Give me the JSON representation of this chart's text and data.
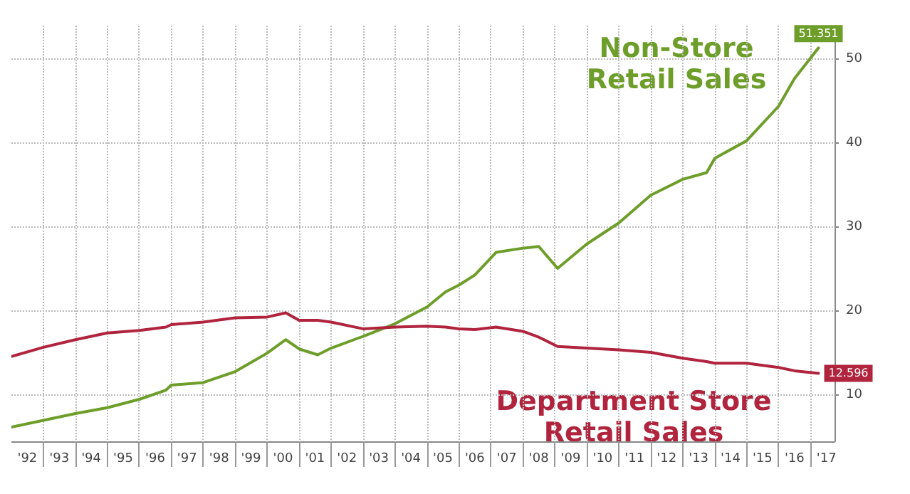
{
  "chart_data": {
    "type": "line",
    "x": [
      "1992-01",
      "1993-01",
      "1994-01",
      "1995-01",
      "1996-01",
      "1996-11",
      "1997-01",
      "1998-01",
      "1999-01",
      "2000-01",
      "2000-08",
      "2001-01",
      "2001-08",
      "2002-01",
      "2003-01",
      "2004-01",
      "2005-01",
      "2005-08",
      "2006-01",
      "2006-07",
      "2007-03",
      "2008-01",
      "2008-07",
      "2009-02",
      "2010-01",
      "2011-01",
      "2012-01",
      "2013-01",
      "2013-10",
      "2014-01",
      "2015-01",
      "2016-01",
      "2016-07",
      "2017-04"
    ],
    "series": [
      {
        "name": "Non-Store Retail Sales",
        "color": "#6e9e2a",
        "values": [
          6.2,
          7.0,
          7.8,
          8.5,
          9.5,
          10.6,
          11.2,
          11.5,
          12.8,
          15.0,
          16.6,
          15.5,
          14.8,
          15.6,
          17.0,
          18.5,
          20.5,
          22.3,
          23.1,
          24.3,
          27.0,
          27.5,
          27.7,
          25.1,
          28.0,
          30.5,
          33.8,
          35.7,
          36.5,
          38.2,
          40.3,
          44.4,
          47.7,
          51.351
        ],
        "value_labels": [
          null,
          null,
          null,
          null,
          null,
          null,
          null,
          null,
          null,
          null,
          null,
          null,
          null,
          null,
          null,
          null,
          null,
          null,
          null,
          null,
          null,
          null,
          null,
          null,
          null,
          null,
          null,
          null,
          null,
          null,
          null,
          null,
          null,
          "51.351"
        ]
      },
      {
        "name": "Department Store Retail Sales",
        "color": "#b0243e",
        "values": [
          14.6,
          15.7,
          16.6,
          17.4,
          17.7,
          18.1,
          18.4,
          18.7,
          19.2,
          19.3,
          19.8,
          18.9,
          18.9,
          18.7,
          17.9,
          18.1,
          18.2,
          18.1,
          17.9,
          17.8,
          18.1,
          17.6,
          16.9,
          15.8,
          15.6,
          15.4,
          15.1,
          14.4,
          14.0,
          13.8,
          13.8,
          13.3,
          12.9,
          12.596
        ],
        "value_labels": [
          null,
          null,
          null,
          null,
          null,
          null,
          null,
          null,
          null,
          null,
          null,
          null,
          null,
          null,
          null,
          null,
          null,
          null,
          null,
          null,
          null,
          null,
          null,
          null,
          null,
          null,
          null,
          null,
          null,
          null,
          null,
          null,
          null,
          "12.596"
        ]
      }
    ],
    "xlim": [
      "1992-01",
      "2017-10"
    ],
    "xticks": [
      {
        "value": "1992-07",
        "label": "'92"
      },
      {
        "value": "1993-07",
        "label": "'93"
      },
      {
        "value": "1994-07",
        "label": "'94"
      },
      {
        "value": "1995-07",
        "label": "'95"
      },
      {
        "value": "1996-07",
        "label": "'96"
      },
      {
        "value": "1997-07",
        "label": "'97"
      },
      {
        "value": "1998-07",
        "label": "'98"
      },
      {
        "value": "1999-07",
        "label": "'99"
      },
      {
        "value": "2000-07",
        "label": "'00"
      },
      {
        "value": "2001-07",
        "label": "'01"
      },
      {
        "value": "2002-07",
        "label": "'02"
      },
      {
        "value": "2003-07",
        "label": "'03"
      },
      {
        "value": "2004-07",
        "label": "'04"
      },
      {
        "value": "2005-07",
        "label": "'05"
      },
      {
        "value": "2006-07",
        "label": "'06"
      },
      {
        "value": "2007-07",
        "label": "'07"
      },
      {
        "value": "2008-07",
        "label": "'08"
      },
      {
        "value": "2009-07",
        "label": "'09"
      },
      {
        "value": "2010-07",
        "label": "'10"
      },
      {
        "value": "2011-07",
        "label": "'11"
      },
      {
        "value": "2012-07",
        "label": "'12"
      },
      {
        "value": "2013-07",
        "label": "'13"
      },
      {
        "value": "2014-07",
        "label": "'14"
      },
      {
        "value": "2015-07",
        "label": "'15"
      },
      {
        "value": "2016-07",
        "label": "'16"
      },
      {
        "value": "2017-07",
        "label": "'17"
      }
    ],
    "ylim": [
      4.5,
      54
    ],
    "yticks": [
      10,
      20,
      30,
      40,
      50
    ],
    "grid": true,
    "marker": "none",
    "line_style": "solid"
  }
}
